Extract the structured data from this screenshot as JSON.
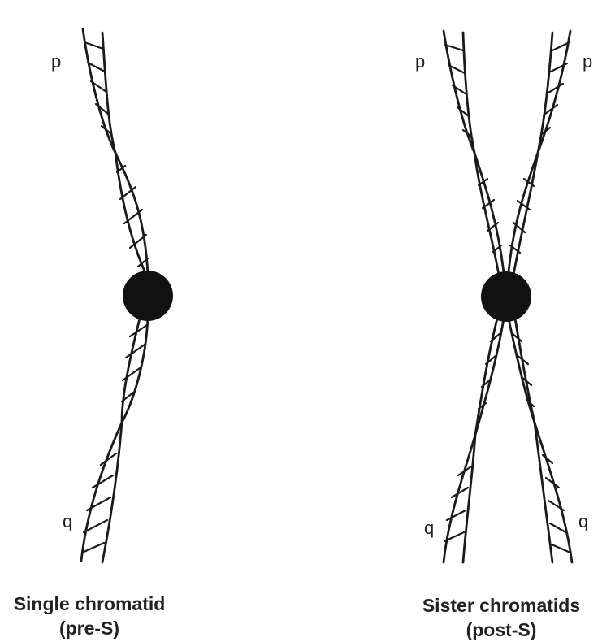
{
  "left_panel": {
    "p_label": "p",
    "q_label": "q",
    "caption_line1": "Single chromatid",
    "caption_line2": "(pre-S)"
  },
  "right_panel": {
    "p_label_left": "p",
    "p_label_right": "p",
    "q_label_left": "q",
    "q_label_right": "q",
    "caption_line1": "Sister chromatids",
    "caption_line2": "(post-S)"
  },
  "colors": {
    "ink": "#1a1a1a",
    "centromere": "#111111",
    "background": "#ffffff"
  }
}
